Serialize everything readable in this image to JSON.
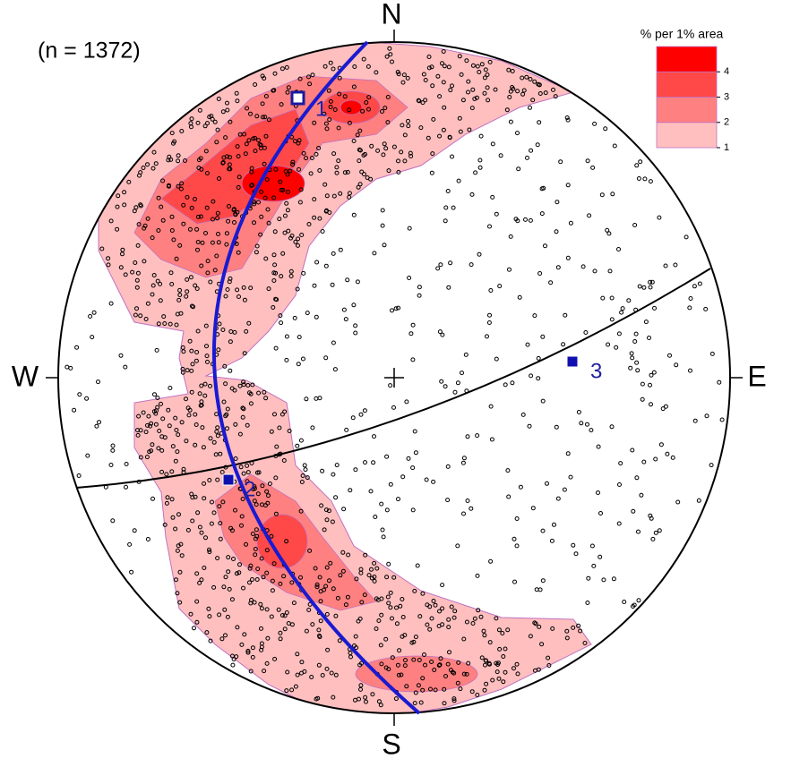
{
  "chart_data": {
    "type": "stereonet",
    "annotation": "(n =  1372)",
    "directions": {
      "north": "N",
      "south": "S",
      "east": "E",
      "west": "W"
    },
    "legend": {
      "title": "% per 1% area",
      "range": [
        1,
        5
      ],
      "ticks": [
        1,
        2,
        3,
        4
      ],
      "colors": [
        "#ffbfbf",
        "#ff8080",
        "#ff4848",
        "#ff0000"
      ]
    },
    "poles": [
      {
        "label": "1"
      },
      {
        "label": "2"
      },
      {
        "label": "3"
      }
    ]
  }
}
